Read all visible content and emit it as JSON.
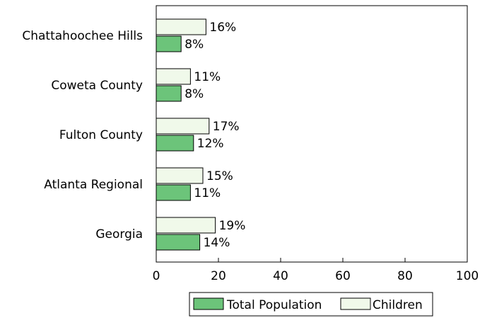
{
  "chart_data": {
    "type": "bar",
    "orientation": "horizontal",
    "categories": [
      "Chattahoochee Hills",
      "Coweta County",
      "Fulton County",
      "Atlanta Regional",
      "Georgia"
    ],
    "series": [
      {
        "name": "Total Population",
        "values": [
          8,
          8,
          12,
          11,
          14
        ],
        "labels": [
          "8%",
          "8%",
          "12%",
          "11%",
          "14%"
        ],
        "color": "#6cc47a"
      },
      {
        "name": "Children",
        "values": [
          16,
          11,
          17,
          15,
          19
        ],
        "labels": [
          "16%",
          "11%",
          "17%",
          "15%",
          "19%"
        ],
        "color": "#f0f9ea"
      }
    ],
    "xlim": [
      0,
      100
    ],
    "xticks": [
      "0",
      "20",
      "40",
      "60",
      "80",
      "100"
    ],
    "grid": false,
    "legend_position": "bottom"
  }
}
